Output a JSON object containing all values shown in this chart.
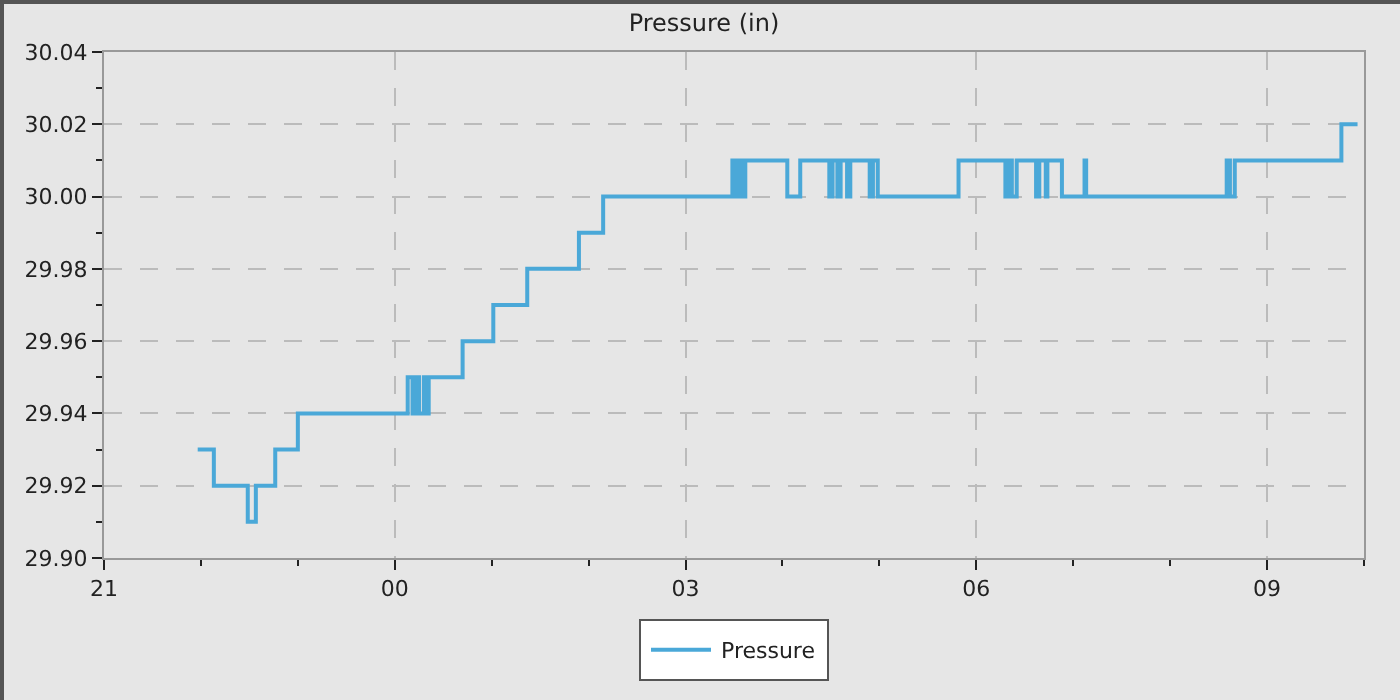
{
  "chart_data": {
    "type": "step",
    "title": "Pressure (in)",
    "x": [
      "2000-01-01T21:58",
      "2000-01-01T22:08",
      "2000-01-01T22:29",
      "2000-01-01T22:34",
      "2000-01-01T22:46",
      "2000-01-01T23:00",
      "2000-01-02T00:08",
      "2000-01-02T00:11",
      "2000-01-02T00:13",
      "2000-01-02T00:15",
      "2000-01-02T00:18",
      "2000-01-02T00:20",
      "2000-01-02T00:21",
      "2000-01-02T00:42",
      "2000-01-02T01:01",
      "2000-01-02T01:22",
      "2000-01-02T01:54",
      "2000-01-02T02:09",
      "2000-01-02T03:29",
      "2000-01-02T03:31",
      "2000-01-02T03:33",
      "2000-01-02T03:35",
      "2000-01-02T03:37",
      "2000-01-02T04:03",
      "2000-01-02T04:11",
      "2000-01-02T04:29",
      "2000-01-02T04:31",
      "2000-01-02T04:34",
      "2000-01-02T04:36",
      "2000-01-02T04:40",
      "2000-01-02T04:42",
      "2000-01-02T04:54",
      "2000-01-02T04:56",
      "2000-01-02T04:59",
      "2000-01-02T05:49",
      "2000-01-02T06:18",
      "2000-01-02T06:20",
      "2000-01-02T06:22",
      "2000-01-02T06:25",
      "2000-01-02T06:37",
      "2000-01-02T06:39",
      "2000-01-02T06:43",
      "2000-01-02T06:44",
      "2000-01-02T06:53",
      "2000-01-02T07:07",
      "2000-01-02T07:08",
      "2000-01-02T08:35",
      "2000-01-02T08:37",
      "2000-01-02T08:40",
      "2000-01-02T09:46",
      "2000-01-02T09:56"
    ],
    "series": [
      {
        "name": "Pressure",
        "color": "#4aa8d8",
        "values": [
          29.93,
          29.92,
          29.91,
          29.92,
          29.93,
          29.94,
          29.95,
          29.94,
          29.95,
          29.94,
          29.95,
          29.94,
          29.95,
          29.96,
          29.97,
          29.98,
          29.99,
          30.0,
          30.01,
          30.0,
          30.01,
          30.0,
          30.01,
          30.0,
          30.01,
          30.0,
          30.01,
          30.0,
          30.01,
          30.0,
          30.01,
          30.0,
          30.01,
          30.0,
          30.01,
          30.0,
          30.01,
          30.0,
          30.01,
          30.0,
          30.01,
          30.0,
          30.01,
          30.0,
          30.01,
          30.0,
          30.01,
          30.0,
          30.01,
          30.02,
          30.02
        ]
      }
    ],
    "xlim": [
      "2000-01-01T21:00",
      "2000-01-02T10:00"
    ],
    "xticks": [
      {
        "value": "2000-01-01T21:00",
        "label": "21"
      },
      {
        "value": "2000-01-01T22:00",
        "label": null
      },
      {
        "value": "2000-01-01T23:00",
        "label": null
      },
      {
        "value": "2000-01-02T00:00",
        "label": "00"
      },
      {
        "value": "2000-01-02T01:00",
        "label": null
      },
      {
        "value": "2000-01-02T02:00",
        "label": null
      },
      {
        "value": "2000-01-02T03:00",
        "label": "03"
      },
      {
        "value": "2000-01-02T04:00",
        "label": null
      },
      {
        "value": "2000-01-02T05:00",
        "label": null
      },
      {
        "value": "2000-01-02T06:00",
        "label": "06"
      },
      {
        "value": "2000-01-02T07:00",
        "label": null
      },
      {
        "value": "2000-01-02T08:00",
        "label": null
      },
      {
        "value": "2000-01-02T09:00",
        "label": "09"
      },
      {
        "value": "2000-01-02T10:00",
        "label": null
      }
    ],
    "ylim": [
      29.9,
      30.04
    ],
    "yticks": [
      {
        "value": 29.9,
        "label": "29.90"
      },
      {
        "value": 29.91,
        "label": null
      },
      {
        "value": 29.92,
        "label": "29.92"
      },
      {
        "value": 29.93,
        "label": null
      },
      {
        "value": 29.94,
        "label": "29.94"
      },
      {
        "value": 29.95,
        "label": null
      },
      {
        "value": 29.96,
        "label": "29.96"
      },
      {
        "value": 29.97,
        "label": null
      },
      {
        "value": 29.98,
        "label": "29.98"
      },
      {
        "value": 29.99,
        "label": null
      },
      {
        "value": 30.0,
        "label": "30.00"
      },
      {
        "value": 30.01,
        "label": null
      },
      {
        "value": 30.02,
        "label": "30.02"
      },
      {
        "value": 30.03,
        "label": null
      },
      {
        "value": 30.04,
        "label": "30.04"
      }
    ],
    "grid": true,
    "legend": "bottom",
    "line_style": "solid",
    "marker": "none"
  }
}
